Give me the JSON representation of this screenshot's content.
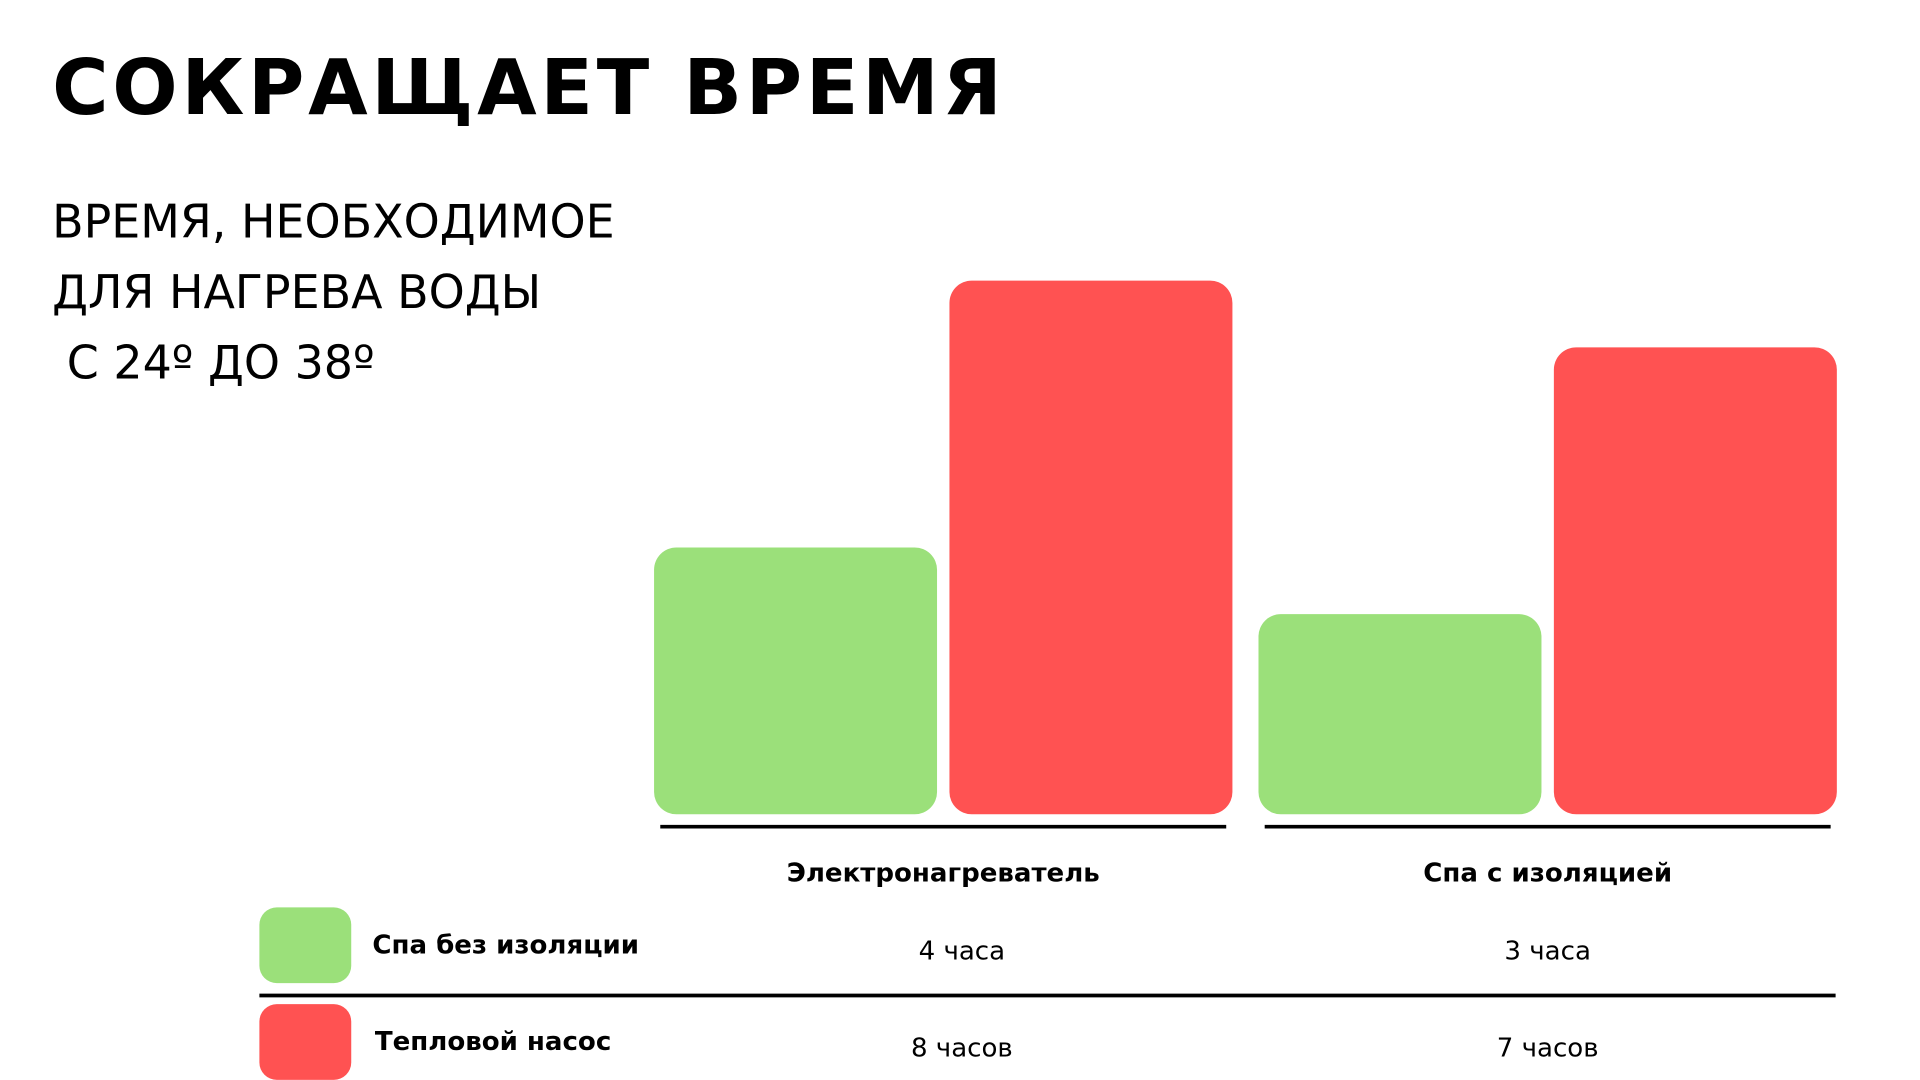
{
  "chart_data": {
    "type": "bar",
    "title": "СОКРАЩАЕТ ВРЕМЯ",
    "subtitle": [
      "ВРЕМЯ, НЕОБХОДИМОЕ",
      "ДЛЯ НАГРЕВА ВОДЫ",
      " С 24º ДО 38º"
    ],
    "categories": [
      "Электронагреватель",
      "Спа с изоляцией"
    ],
    "series": [
      {
        "name": "Спа без изоляции",
        "color": "#9be07a",
        "values": [
          4,
          3
        ],
        "value_labels": [
          "4 часа",
          "3 часа"
        ]
      },
      {
        "name": "Тепловой насос",
        "color": "#ff5252",
        "values": [
          8,
          7
        ],
        "value_labels": [
          "8 часов",
          "7 часов"
        ]
      }
    ]
  }
}
